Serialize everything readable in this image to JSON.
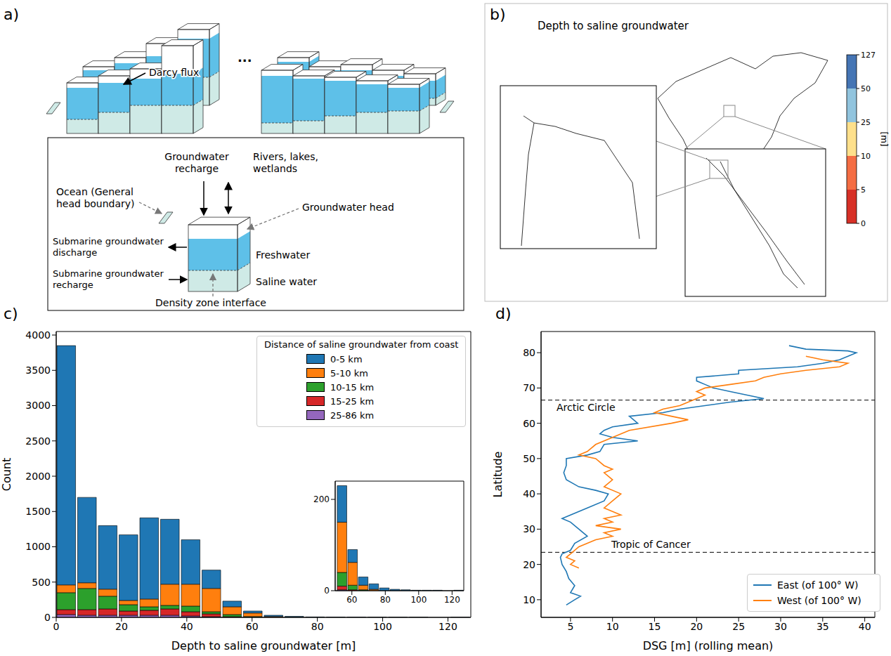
{
  "panel_labels": [
    "a)",
    "b)",
    "c)",
    "d)"
  ],
  "diagram": {
    "darcy_flux": "Darcy flux",
    "ellipsis": "...",
    "groundwater_recharge": "Groundwater recharge",
    "rivers": "Rivers, lakes, wetlands",
    "ocean": "Ocean (General head boundary)",
    "groundwater_head": "Groundwater head",
    "sgd": "Submarine groundwater discharge",
    "sgr": "Submarine groundwater recharge",
    "freshwater": "Freshwater",
    "saline": "Saline water",
    "interface": "Density zone interface"
  },
  "map": {
    "title": "Depth to saline groundwater",
    "colorbar": {
      "label": "[m]",
      "ticks": [
        0,
        5,
        10,
        25,
        50,
        127
      ],
      "colors": [
        "#d73027",
        "#f46d43",
        "#fee08b",
        "#91c4de",
        "#4575b4"
      ]
    }
  },
  "chart_data": [
    {
      "type": "histogram",
      "x_label": "Depth to saline groundwater [m]",
      "y_label": "Count",
      "stacked": true,
      "legend": "upper right",
      "legend_title": "Distance of saline groundwater from coast",
      "bins": [
        0,
        6.35,
        12.7,
        19.05,
        25.4,
        31.75,
        38.1,
        44.45,
        50.8,
        57.15,
        63.5,
        69.85,
        76.2,
        82.55,
        88.9,
        95.25,
        101.6,
        107.95,
        114.3,
        120.65,
        127
      ],
      "series": [
        {
          "name": "0-5 km",
          "color": "#1f77b4",
          "values": [
            3390,
            1210,
            900,
            930,
            1150,
            920,
            630,
            260,
            80,
            28,
            18,
            12,
            6,
            3,
            2,
            1,
            1,
            1,
            0,
            1
          ]
        },
        {
          "name": "5-10 km",
          "color": "#ff7f0e",
          "values": [
            110,
            80,
            100,
            60,
            110,
            300,
            310,
            330,
            110,
            50,
            10,
            3,
            0,
            0,
            0,
            0,
            0,
            0,
            0,
            0
          ]
        },
        {
          "name": "10-15 km",
          "color": "#2ca02c",
          "values": [
            240,
            300,
            180,
            90,
            50,
            50,
            80,
            30,
            30,
            10,
            2,
            0,
            0,
            0,
            0,
            0,
            0,
            0,
            0,
            0
          ]
        },
        {
          "name": "15-25 km",
          "color": "#d62728",
          "values": [
            70,
            80,
            90,
            60,
            70,
            90,
            60,
            40,
            8,
            2,
            0,
            0,
            0,
            0,
            0,
            0,
            0,
            0,
            0,
            0
          ]
        },
        {
          "name": "25-86 km",
          "color": "#9467bd",
          "values": [
            40,
            30,
            30,
            30,
            30,
            30,
            20,
            10,
            2,
            0,
            0,
            0,
            0,
            0,
            0,
            0,
            0,
            0,
            0,
            0
          ]
        }
      ],
      "xlim": [
        0,
        127
      ],
      "xticks": [
        0,
        20,
        40,
        60,
        80,
        100,
        120
      ],
      "ylim": [
        0,
        4050
      ],
      "yticks": [
        0,
        500,
        1000,
        1500,
        2000,
        2500,
        3000,
        3500,
        4000
      ],
      "inset": {
        "xlim": [
          50,
          127
        ],
        "xticks": [
          60,
          80,
          100,
          120
        ],
        "ylim": [
          0,
          240
        ],
        "yticks": [
          0,
          200
        ]
      }
    },
    {
      "type": "line",
      "x_label": "DSG [m] (rolling mean)",
      "y_label": "Latitude",
      "legend": "lower right",
      "series": [
        {
          "name": "East (of 100° W)",
          "color": "#1f77b4",
          "x": [
            4.5,
            5.5,
            6.2,
            5,
            5.5,
            4.8,
            4.5,
            4,
            3.8,
            4,
            5,
            5.5,
            7,
            6,
            5,
            4,
            5,
            7,
            9,
            9.5,
            8,
            6,
            4.5,
            4.2,
            4.5,
            4.5,
            7,
            8.5,
            9,
            13,
            10,
            8.5,
            9,
            10,
            13,
            12,
            16,
            18,
            21,
            24,
            28,
            26,
            24,
            22,
            21,
            20,
            20,
            25,
            25,
            32,
            35,
            37,
            38,
            39,
            38,
            33,
            31
          ],
          "y": [
            8.5,
            10,
            11,
            12,
            14,
            16,
            18,
            20,
            22,
            23,
            24,
            26,
            28,
            30,
            32,
            33,
            34,
            36,
            38,
            40,
            41,
            42,
            44,
            46,
            48,
            50,
            51,
            52,
            54,
            55,
            56,
            57,
            58,
            59,
            60,
            62,
            63,
            64,
            65,
            66,
            67,
            68,
            69,
            70,
            71,
            72,
            73,
            74,
            75,
            76,
            77,
            78,
            79,
            80,
            80.5,
            81,
            82
          ]
        },
        {
          "name": "West (of 100° W)",
          "color": "#ff7f0e",
          "x": [
            6,
            5,
            5.5,
            4.5,
            5,
            6,
            7,
            8,
            10,
            9,
            11,
            8,
            10,
            9,
            11,
            10,
            9,
            10,
            11,
            9,
            10,
            9,
            10,
            9,
            8,
            6,
            7,
            8,
            10,
            12,
            17,
            19,
            17,
            15,
            16,
            18,
            19,
            20,
            21,
            20,
            21,
            24,
            27,
            28,
            30,
            33,
            37,
            38,
            35,
            33
          ],
          "y": [
            19,
            20,
            21,
            22,
            23,
            25,
            26,
            27,
            28,
            29,
            30,
            31,
            32,
            33,
            34,
            35,
            36,
            38,
            40,
            42,
            44,
            46,
            47,
            48,
            50,
            51,
            52,
            54,
            56,
            58,
            60,
            61,
            62,
            63,
            64,
            65,
            66,
            67,
            68,
            69,
            70,
            71,
            72,
            73,
            74,
            75,
            76,
            77,
            78,
            79
          ]
        }
      ],
      "xlim": [
        1.5,
        41.2
      ],
      "xticks": [
        5,
        10,
        15,
        20,
        25,
        30,
        35,
        40
      ],
      "ylim": [
        5,
        86
      ],
      "yticks": [
        10,
        20,
        30,
        40,
        50,
        60,
        70,
        80
      ],
      "annotations": [
        {
          "text": "Arctic Circle",
          "y": 66.56
        },
        {
          "text": "Tropic of Cancer",
          "y": 23.44
        }
      ]
    }
  ]
}
